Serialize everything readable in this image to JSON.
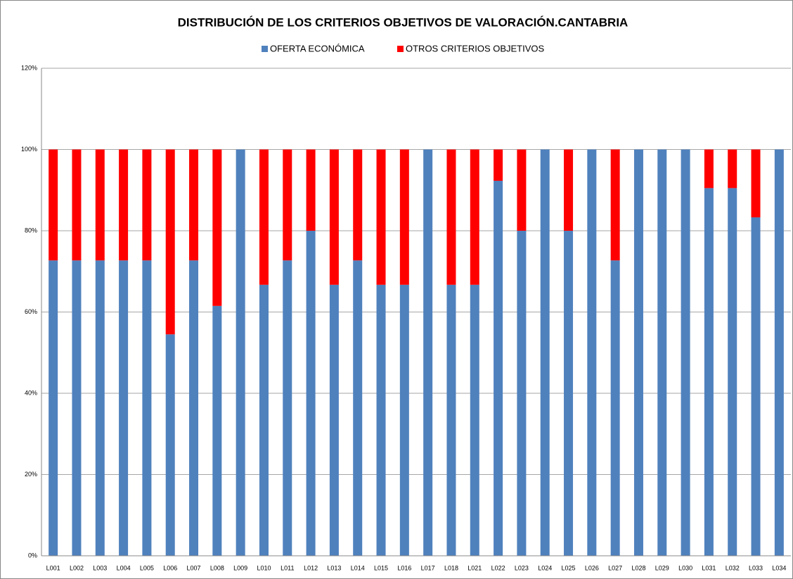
{
  "chart_data": {
    "type": "stacked_bar",
    "title": "DISTRIBUCIÓN DE LOS CRITERIOS OBJETIVOS DE VALORACIÓN.CANTABRIA",
    "categories": [
      "L001",
      "L002",
      "L003",
      "L004",
      "L005",
      "L006",
      "L007",
      "L008",
      "L009",
      "L010",
      "L011",
      "L012",
      "L013",
      "L014",
      "L015",
      "L016",
      "L017",
      "L018",
      "L021",
      "L022",
      "L023",
      "L024",
      "L025",
      "L026",
      "L027",
      "L028",
      "L029",
      "L030",
      "L031",
      "L032",
      "L033",
      "L034"
    ],
    "series": [
      {
        "name": "OFERTA ECONÓMICA",
        "color": "#4f81bd",
        "values": [
          72.7,
          72.7,
          72.7,
          72.7,
          72.7,
          54.5,
          72.7,
          61.5,
          100,
          66.7,
          72.7,
          80,
          66.7,
          72.7,
          66.7,
          66.7,
          100,
          66.7,
          66.7,
          92.3,
          80,
          100,
          80,
          100,
          72.7,
          100,
          100,
          100,
          90.5,
          90.5,
          83.3,
          100
        ]
      },
      {
        "name": "OTROS CRITERIOS OBJETIVOS",
        "color": "#ff0000",
        "values": [
          27.3,
          27.3,
          27.3,
          27.3,
          27.3,
          45.5,
          27.3,
          38.5,
          0,
          33.3,
          27.3,
          20,
          33.3,
          27.3,
          33.3,
          33.3,
          0,
          33.3,
          33.3,
          7.7,
          20,
          0,
          20,
          0,
          27.3,
          0,
          0,
          0,
          9.5,
          9.5,
          16.7,
          0
        ]
      }
    ],
    "ylim": [
      0,
      120
    ],
    "yticks": [
      {
        "value": 0,
        "label": "0%"
      },
      {
        "value": 20,
        "label": "20%"
      },
      {
        "value": 40,
        "label": "40%"
      },
      {
        "value": 60,
        "label": "60%"
      },
      {
        "value": 80,
        "label": "80%"
      },
      {
        "value": 100,
        "label": "100%"
      },
      {
        "value": 120,
        "label": "120%"
      }
    ],
    "grid": true,
    "legend": "top"
  }
}
